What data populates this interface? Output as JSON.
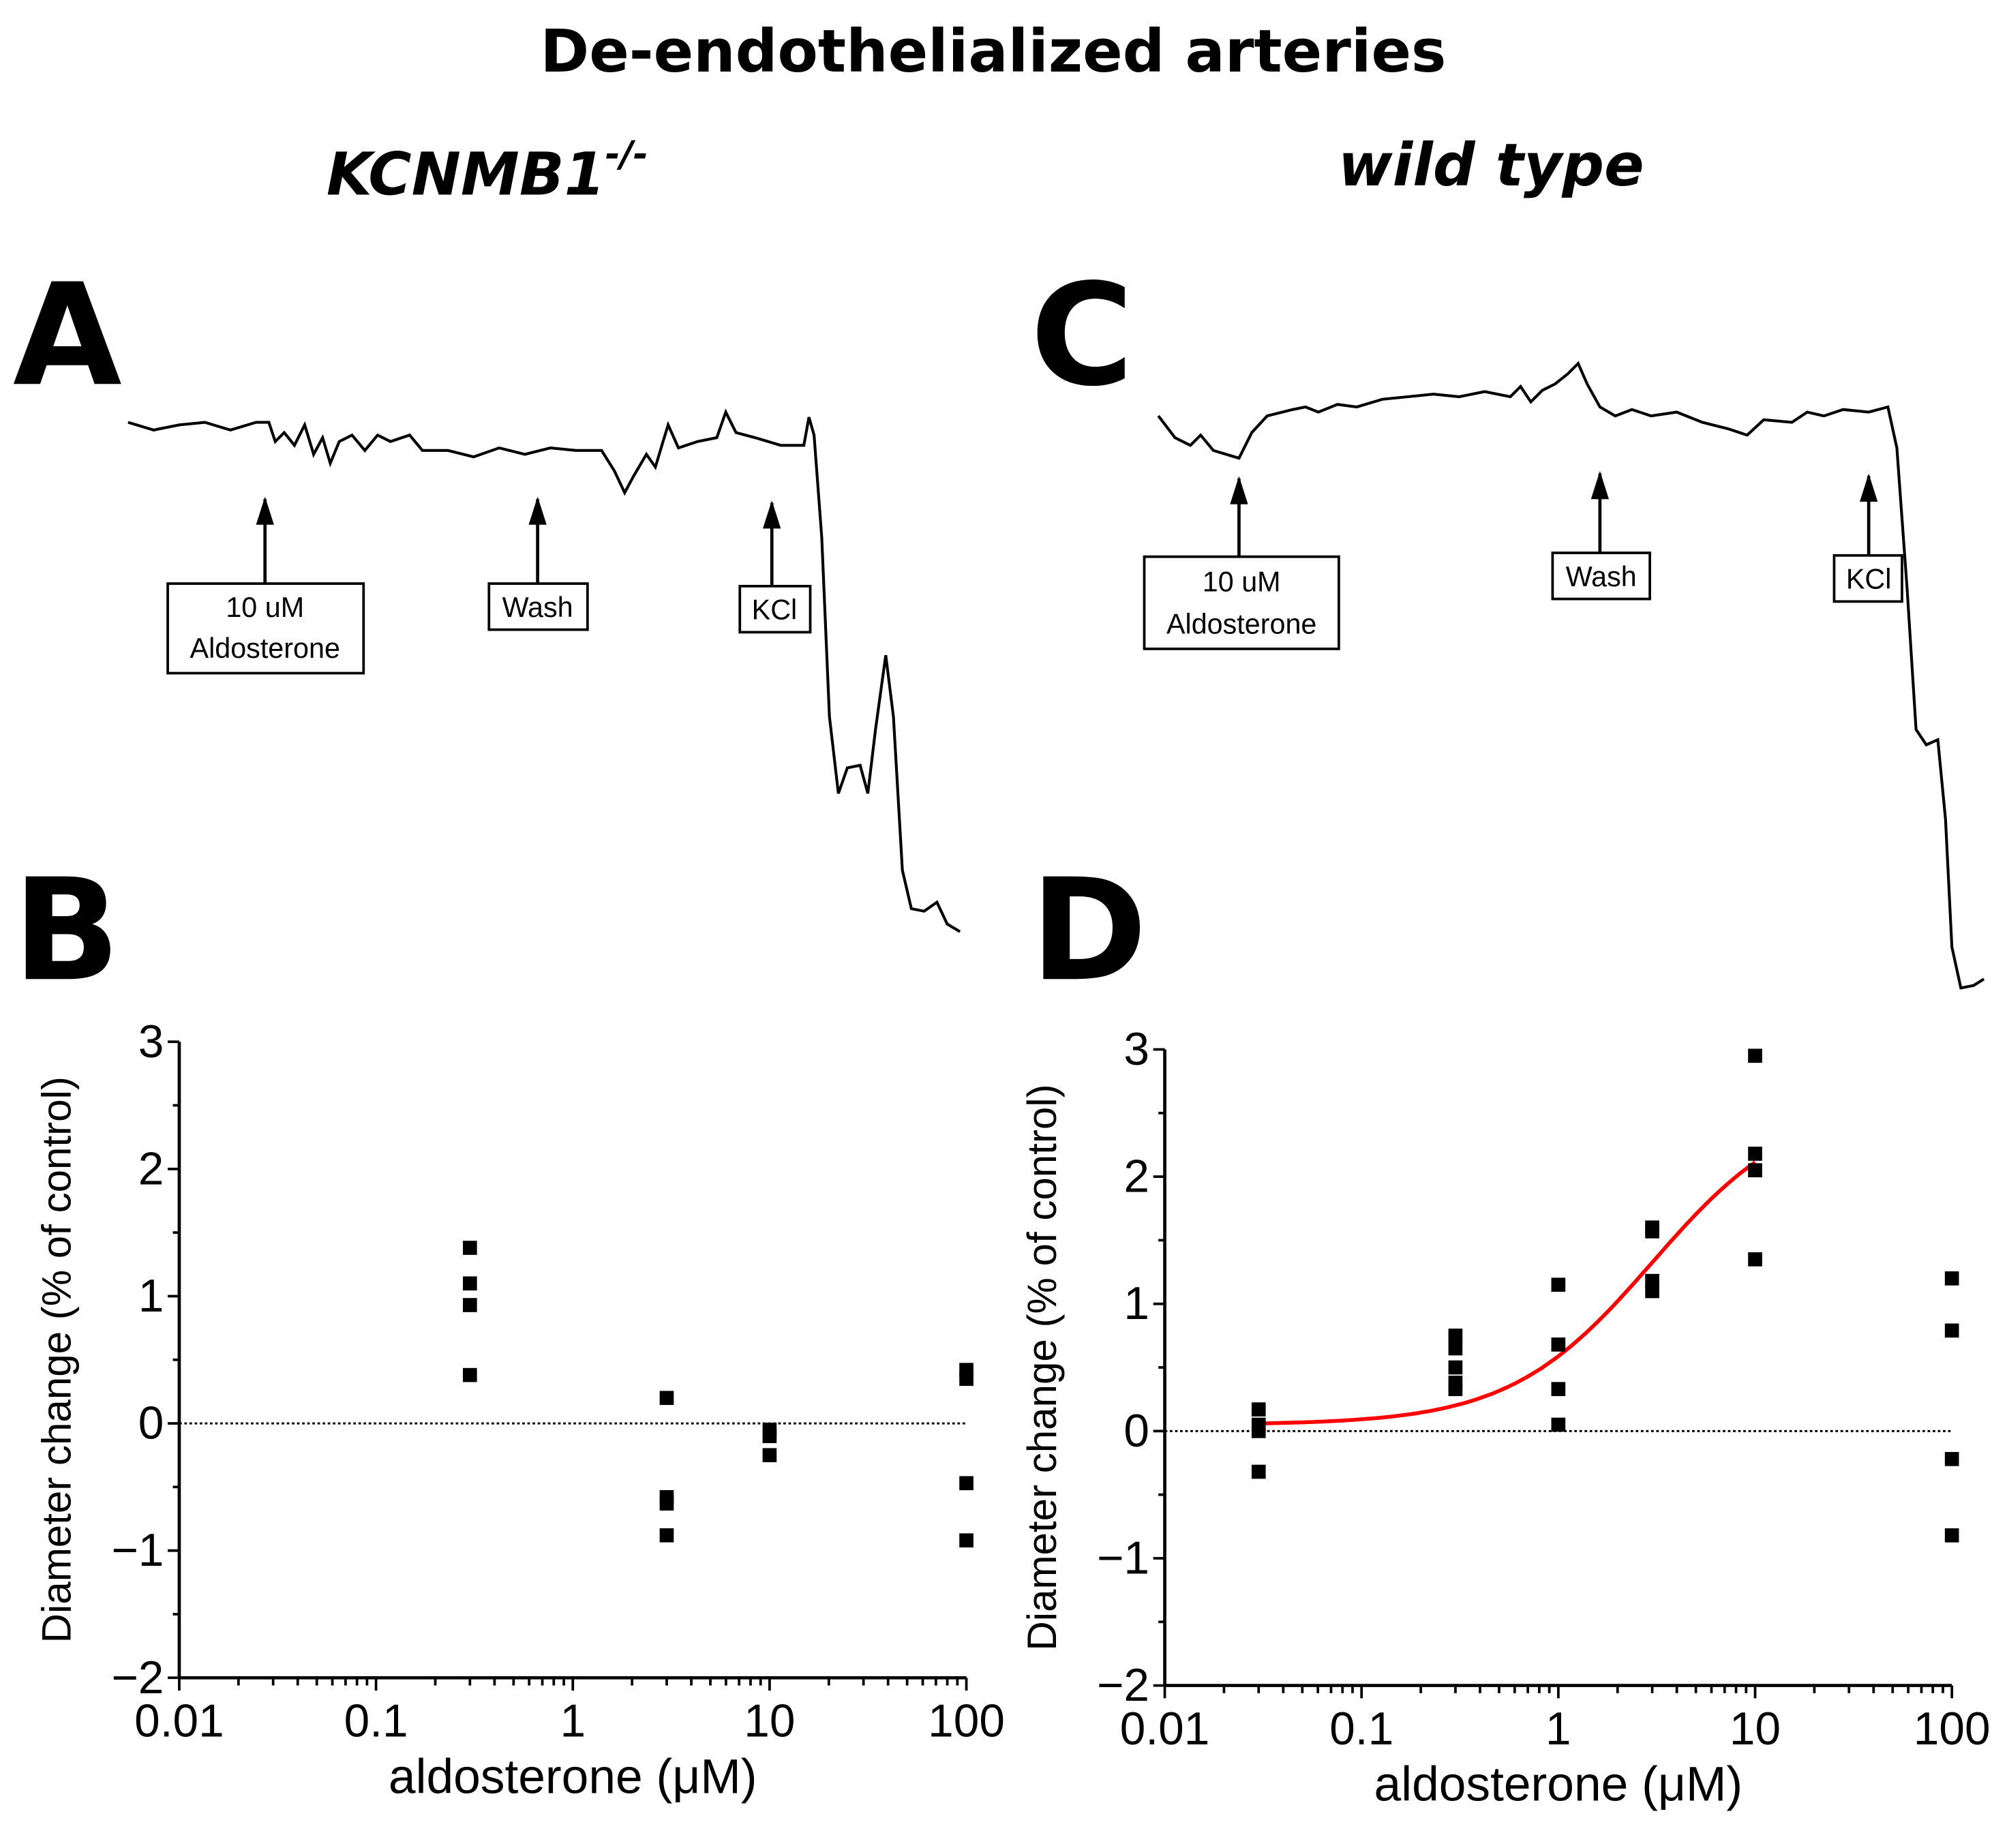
{
  "title": "De-endothelialized arteries",
  "left_heading": {
    "main": "KCNMB1",
    "sup": "-/-"
  },
  "right_heading": "wild type",
  "panel_letters": [
    "A",
    "B",
    "C",
    "D"
  ],
  "trace_A_labels": {
    "aldo_line1": "10 uM",
    "aldo_line2": "Aldosterone",
    "wash": "Wash",
    "kcl": "KCl"
  },
  "trace_C_labels": {
    "aldo_line1": "10 uM",
    "aldo_line2": "Aldosterone",
    "wash": "Wash",
    "kcl": "KCl"
  },
  "colors": {
    "fit": "#ff0000",
    "points": "#000000"
  },
  "chart_data": [
    {
      "panel": "B",
      "type": "scatter",
      "xscale": "log",
      "xlabel": "aldosterone (μM)",
      "ylabel": "Diameter change (% of control)",
      "xlim": [
        0.01,
        100
      ],
      "ylim": [
        -2,
        3
      ],
      "xticks": [
        "0.01",
        "0.1",
        "1",
        "10",
        "100"
      ],
      "yticks": [
        "−2",
        "−1",
        "0",
        "1",
        "2",
        "3"
      ],
      "reference_line": 0,
      "points": [
        {
          "x": 0.3,
          "y": 1.38
        },
        {
          "x": 0.3,
          "y": 1.1
        },
        {
          "x": 0.3,
          "y": 0.93
        },
        {
          "x": 0.3,
          "y": 0.38
        },
        {
          "x": 3,
          "y": 0.2
        },
        {
          "x": 3,
          "y": -0.58
        },
        {
          "x": 3,
          "y": -0.63
        },
        {
          "x": 3,
          "y": -0.88
        },
        {
          "x": 10,
          "y": -0.05
        },
        {
          "x": 10,
          "y": -0.1
        },
        {
          "x": 10,
          "y": -0.25
        },
        {
          "x": 100,
          "y": 0.42
        },
        {
          "x": 100,
          "y": 0.35
        },
        {
          "x": 100,
          "y": -0.47
        },
        {
          "x": 100,
          "y": -0.92
        }
      ]
    },
    {
      "panel": "D",
      "type": "scatter",
      "xscale": "log",
      "xlabel": "aldosterone (μM)",
      "ylabel": "Diameter change (% of control)",
      "xlim": [
        0.01,
        100
      ],
      "ylim": [
        -2,
        3
      ],
      "xticks": [
        "0.01",
        "0.1",
        "1",
        "10",
        "100"
      ],
      "yticks": [
        "−2",
        "−1",
        "0",
        "1",
        "2",
        "3"
      ],
      "reference_line": 0,
      "points": [
        {
          "x": 0.03,
          "y": 0.17
        },
        {
          "x": 0.03,
          "y": 0.05
        },
        {
          "x": 0.03,
          "y": 0.0
        },
        {
          "x": 0.03,
          "y": -0.32
        },
        {
          "x": 0.3,
          "y": 0.75
        },
        {
          "x": 0.3,
          "y": 0.65
        },
        {
          "x": 0.3,
          "y": 0.5
        },
        {
          "x": 0.3,
          "y": 0.38
        },
        {
          "x": 0.3,
          "y": 0.33
        },
        {
          "x": 1,
          "y": 1.15
        },
        {
          "x": 1,
          "y": 0.68
        },
        {
          "x": 1,
          "y": 0.33
        },
        {
          "x": 1,
          "y": 0.05
        },
        {
          "x": 3,
          "y": 1.6
        },
        {
          "x": 3,
          "y": 1.57
        },
        {
          "x": 3,
          "y": 1.18
        },
        {
          "x": 3,
          "y": 1.1
        },
        {
          "x": 10,
          "y": 2.95
        },
        {
          "x": 10,
          "y": 2.18
        },
        {
          "x": 10,
          "y": 2.05
        },
        {
          "x": 10,
          "y": 1.35
        },
        {
          "x": 100,
          "y": 1.2
        },
        {
          "x": 100,
          "y": 0.79
        },
        {
          "x": 100,
          "y": -0.22
        },
        {
          "x": 100,
          "y": -0.82
        }
      ],
      "fit": {
        "model": "hill",
        "bottom": 0.05,
        "top": 2.6,
        "ec50": 3,
        "hill": 1.2,
        "x_range": [
          0.03,
          10
        ]
      }
    }
  ]
}
